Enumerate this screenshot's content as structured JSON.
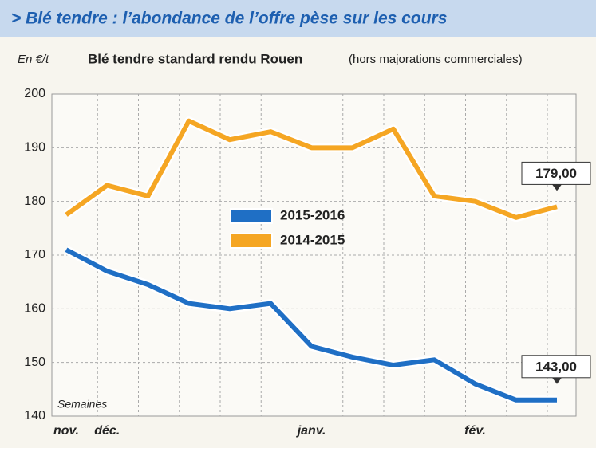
{
  "chart_data": {
    "type": "line",
    "title": "> Blé tendre : l’abondance de l’offre pèse sur les cours",
    "unit_label": "En €/t",
    "subtitle": "Blé tendre standard rendu Rouen",
    "subtitle_note": "(hors majorations commerciales)",
    "x_label": "Semaines",
    "categories": [
      "nov.",
      "déc.",
      null,
      null,
      null,
      null,
      "janv.",
      null,
      null,
      null,
      "fév.",
      null,
      null
    ],
    "series": [
      {
        "name": "2015-2016",
        "color": "#1f6fc5",
        "values": [
          171,
          167,
          164.5,
          161,
          160,
          161,
          153,
          151,
          149.5,
          150.5,
          146,
          143,
          143
        ],
        "value_labels": [
          null,
          null,
          null,
          null,
          null,
          null,
          null,
          null,
          null,
          null,
          null,
          null,
          "143,00"
        ]
      },
      {
        "name": "2014-2015",
        "color": "#f5a623",
        "values": [
          177.5,
          183,
          181,
          195,
          191.5,
          193,
          190,
          190,
          193.5,
          181,
          180,
          177,
          179
        ],
        "value_labels": [
          null,
          null,
          null,
          null,
          null,
          null,
          null,
          null,
          null,
          null,
          null,
          null,
          "179,00"
        ]
      }
    ],
    "ylim": [
      140,
      200
    ],
    "yticks": [
      140,
      150,
      160,
      170,
      180,
      190,
      200
    ],
    "grid": true
  }
}
